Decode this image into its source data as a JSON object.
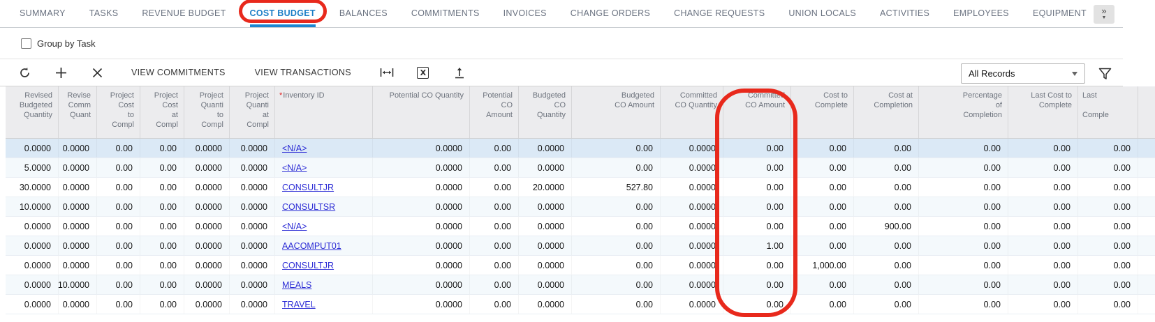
{
  "tabs": {
    "items": [
      {
        "label": "SUMMARY",
        "active": false
      },
      {
        "label": "TASKS",
        "active": false
      },
      {
        "label": "REVENUE BUDGET",
        "active": false
      },
      {
        "label": "COST BUDGET",
        "active": true,
        "annotated": true
      },
      {
        "label": "BALANCES",
        "active": false
      },
      {
        "label": "COMMITMENTS",
        "active": false
      },
      {
        "label": "INVOICES",
        "active": false
      },
      {
        "label": "CHANGE ORDERS",
        "active": false
      },
      {
        "label": "CHANGE REQUESTS",
        "active": false
      },
      {
        "label": "UNION LOCALS",
        "active": false
      },
      {
        "label": "ACTIVITIES",
        "active": false
      },
      {
        "label": "EMPLOYEES",
        "active": false
      },
      {
        "label": "EQUIPMENT",
        "active": false
      }
    ],
    "overflow_glyph": "»"
  },
  "controls": {
    "group_by_task_label": "Group by Task",
    "group_by_task_checked": false
  },
  "toolbar": {
    "refresh_icon": "refresh",
    "add_icon": "plus",
    "delete_icon": "x",
    "view_commitments_label": "VIEW COMMITMENTS",
    "view_transactions_label": "VIEW TRANSACTIONS",
    "fit_width_icon": "fit-to-width",
    "export_excel_icon": "export-to-excel",
    "export_icon": "upload",
    "excel_glyph": "X",
    "records_filter_value": "All Records",
    "filter_icon": "funnel"
  },
  "annotations": {
    "color": "#e8291c",
    "circled_tab": "COST BUDGET",
    "circled_column": "Committed CO Amount"
  },
  "grid": {
    "columns": [
      {
        "id": "revised-budgeted-quantity",
        "label": "Revised\nBudgeted\nQuantity",
        "width": 76,
        "align": "right"
      },
      {
        "id": "revised-committed-quantity",
        "label": "Revise\nComm\nQuant",
        "width": 55,
        "align": "right"
      },
      {
        "id": "project-cost-to-complete",
        "label": "Project\nCost\nto\nCompl",
        "width": 62,
        "align": "right"
      },
      {
        "id": "project-cost-at-completion",
        "label": "Project\nCost\nat\nCompl",
        "width": 63,
        "align": "right"
      },
      {
        "id": "project-quantity-to-complete",
        "label": "Project\nQuanti\nto\nCompl",
        "width": 65,
        "align": "right"
      },
      {
        "id": "project-quantity-at-completion",
        "label": "Project\nQuanti\nat\nCompl",
        "width": 65,
        "align": "right"
      },
      {
        "id": "inventory-id",
        "label": "Inventory ID",
        "width": 140,
        "align": "left",
        "required": true,
        "link": true
      },
      {
        "id": "potential-co-quantity",
        "label": "Potential CO Quantity",
        "width": 139,
        "align": "right"
      },
      {
        "id": "potential-co-amount",
        "label": "Potential\nCO\nAmount",
        "width": 70,
        "align": "right"
      },
      {
        "id": "budgeted-co-quantity",
        "label": "Budgeted\nCO\nQuantity",
        "width": 76,
        "align": "right"
      },
      {
        "id": "budgeted-co-amount",
        "label": "Budgeted\nCO Amount",
        "width": 127,
        "align": "right"
      },
      {
        "id": "committed-co-quantity",
        "label": "Committed\nCO Quantity",
        "width": 90,
        "align": "right"
      },
      {
        "id": "committed-co-amount",
        "label": "Committed\nCO Amount",
        "width": 97,
        "align": "right"
      },
      {
        "id": "cost-to-complete",
        "label": "Cost to\nComplete",
        "width": 90,
        "align": "right"
      },
      {
        "id": "cost-at-completion",
        "label": "Cost at\nCompletion",
        "width": 93,
        "align": "right"
      },
      {
        "id": "percentage-of-completion",
        "label": "Percentage\nof\nCompletion",
        "width": 128,
        "align": "right"
      },
      {
        "id": "last-cost-to-complete",
        "label": "Last Cost to\nComplete",
        "width": 100,
        "align": "right"
      },
      {
        "id": "last-completion",
        "label": "Last\n\nComple",
        "width": 86,
        "align": "right",
        "header_align": "left"
      }
    ],
    "rows": [
      {
        "selected": true,
        "cells": [
          "0.0000",
          "0.0000",
          "0.00",
          "0.00",
          "0.0000",
          "0.0000",
          "<N/A>",
          "0.0000",
          "0.00",
          "0.0000",
          "0.00",
          "0.0000",
          "0.00",
          "0.00",
          "0.00",
          "0.00",
          "0.00",
          "0.00"
        ]
      },
      {
        "selected": false,
        "cells": [
          "5.0000",
          "0.0000",
          "0.00",
          "0.00",
          "0.0000",
          "0.0000",
          "<N/A>",
          "0.0000",
          "0.00",
          "0.0000",
          "0.00",
          "0.0000",
          "0.00",
          "0.00",
          "0.00",
          "0.00",
          "0.00",
          "0.00"
        ]
      },
      {
        "selected": false,
        "cells": [
          "30.0000",
          "0.0000",
          "0.00",
          "0.00",
          "0.0000",
          "0.0000",
          "CONSULTJR",
          "0.0000",
          "0.00",
          "20.0000",
          "527.80",
          "0.0000",
          "0.00",
          "0.00",
          "0.00",
          "0.00",
          "0.00",
          "0.00"
        ]
      },
      {
        "selected": false,
        "cells": [
          "10.0000",
          "0.0000",
          "0.00",
          "0.00",
          "0.0000",
          "0.0000",
          "CONSULTSR",
          "0.0000",
          "0.00",
          "0.0000",
          "0.00",
          "0.0000",
          "0.00",
          "0.00",
          "0.00",
          "0.00",
          "0.00",
          "0.00"
        ]
      },
      {
        "selected": false,
        "cells": [
          "0.0000",
          "0.0000",
          "0.00",
          "0.00",
          "0.0000",
          "0.0000",
          "<N/A>",
          "0.0000",
          "0.00",
          "0.0000",
          "0.00",
          "0.0000",
          "0.00",
          "0.00",
          "900.00",
          "0.00",
          "0.00",
          "0.00"
        ]
      },
      {
        "selected": false,
        "cells": [
          "0.0000",
          "0.0000",
          "0.00",
          "0.00",
          "0.0000",
          "0.0000",
          "AACOMPUT01",
          "0.0000",
          "0.00",
          "0.0000",
          "0.00",
          "0.0000",
          "1.00",
          "0.00",
          "0.00",
          "0.00",
          "0.00",
          "0.00"
        ]
      },
      {
        "selected": false,
        "cells": [
          "0.0000",
          "0.0000",
          "0.00",
          "0.00",
          "0.0000",
          "0.0000",
          "CONSULTJR",
          "0.0000",
          "0.00",
          "0.0000",
          "0.00",
          "0.0000",
          "0.00",
          "1,000.00",
          "0.00",
          "0.00",
          "0.00",
          "0.00"
        ]
      },
      {
        "selected": false,
        "cells": [
          "0.0000",
          "10.0000",
          "0.00",
          "0.00",
          "0.0000",
          "0.0000",
          "MEALS",
          "0.0000",
          "0.00",
          "0.0000",
          "0.00",
          "0.0000",
          "0.00",
          "0.00",
          "0.00",
          "0.00",
          "0.00",
          "0.00"
        ]
      },
      {
        "selected": false,
        "cells": [
          "0.0000",
          "0.0000",
          "0.00",
          "0.00",
          "0.0000",
          "0.0000",
          "TRAVEL",
          "0.0000",
          "0.00",
          "0.0000",
          "0.00",
          "0.0000",
          "0.00",
          "0.00",
          "0.00",
          "0.00",
          "0.00",
          "0.00"
        ]
      }
    ]
  }
}
